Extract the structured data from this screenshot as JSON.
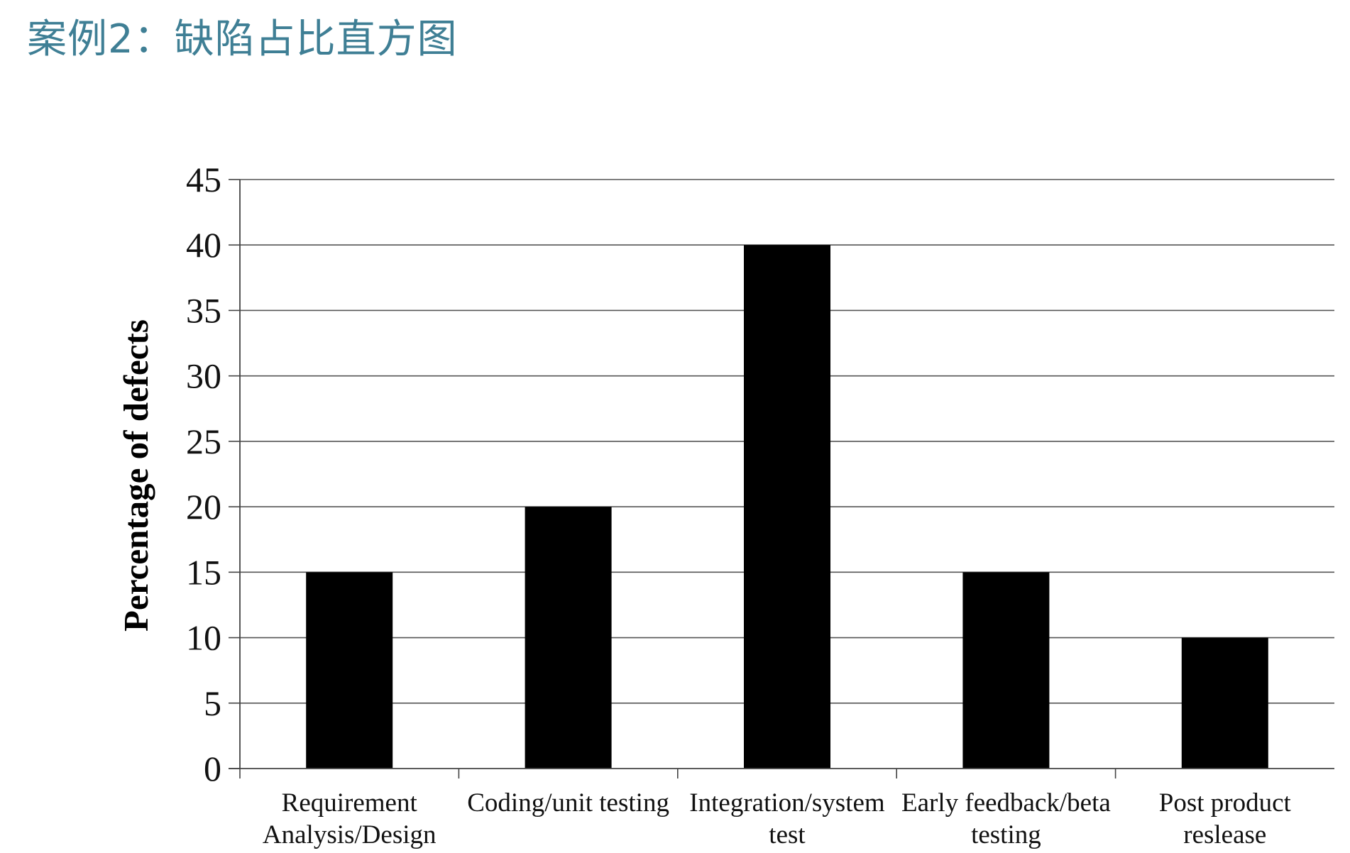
{
  "slide": {
    "title": "案例2：缺陷占比直方图"
  },
  "chart_data": {
    "type": "bar",
    "title": "",
    "xlabel": "",
    "ylabel": "Percentage of defects",
    "categories": [
      [
        "Requirement",
        "Analysis/Design"
      ],
      [
        "Coding/unit testing"
      ],
      [
        "Integration/system",
        "test"
      ],
      [
        "Early feedback/beta",
        "testing"
      ],
      [
        "Post product",
        "reslease"
      ]
    ],
    "values": [
      15,
      20,
      40,
      15,
      10
    ],
    "ylim": [
      0,
      45
    ],
    "yticks": [
      0,
      5,
      10,
      15,
      20,
      25,
      30,
      35,
      40,
      45
    ],
    "grid": true,
    "legend": "none",
    "bar_color": "#000000",
    "grid_color": "#555555"
  }
}
